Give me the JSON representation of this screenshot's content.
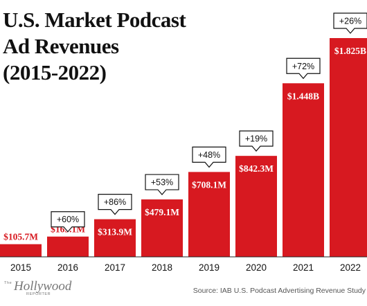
{
  "chart_data": {
    "type": "bar",
    "title_lines": [
      "U.S. Market Podcast",
      "Ad Revenues",
      "(2015-2022)"
    ],
    "categories": [
      "2015",
      "2016",
      "2017",
      "2018",
      "2019",
      "2020",
      "2021",
      "2022"
    ],
    "values": [
      105.7,
      169.1,
      313.9,
      479.1,
      708.1,
      842.3,
      1448,
      1825
    ],
    "value_labels": [
      "$105.7M",
      "$169.1M",
      "$313.9M",
      "$479.1M",
      "$708.1M",
      "$842.3M",
      "$1.448B",
      "$1.825B"
    ],
    "growth_labels": [
      "",
      "+60%",
      "+86%",
      "+53%",
      "+48%",
      "+19%",
      "+72%",
      "+26%"
    ],
    "ylim": [
      0,
      1825
    ],
    "grid": false,
    "colors": {
      "bar": "#d71920",
      "text": "#111111",
      "source": "#555555",
      "logo": "#777777",
      "baseline": "#222222"
    }
  },
  "source_text": "Source: IAB U.S. Podcast Advertising Revenue Study",
  "logo": {
    "main": "Hollywood",
    "pre": "The",
    "sub": "REPORTER"
  }
}
